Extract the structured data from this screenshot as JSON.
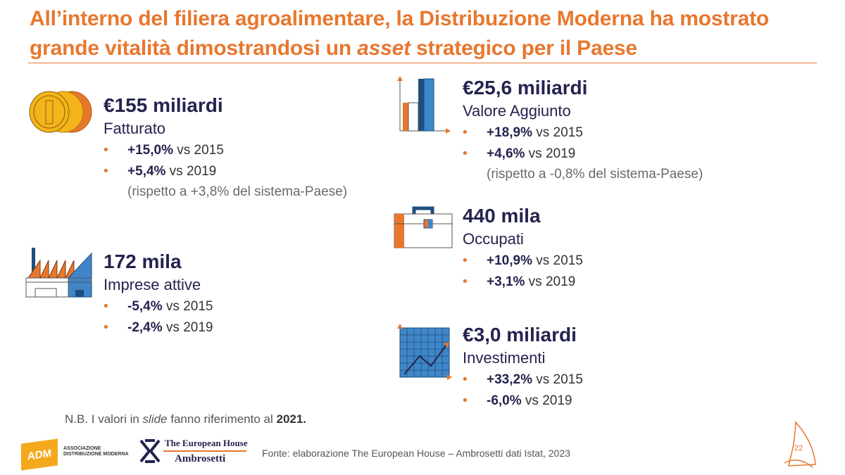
{
  "title": {
    "line1": "All’interno del filiera agroalimentare, la Distribuzione Moderna ha mostrato",
    "line2_a": "grande vitalità dimostrandosi un ",
    "line2_i": "asset",
    "line2_b": " strategico per il Paese"
  },
  "blocks": [
    {
      "headline": "€155 miliardi",
      "label": "Fatturato",
      "icon": "coins-icon",
      "bullets": [
        {
          "value": "+15,0%",
          "text": " vs 2015"
        },
        {
          "value": "+5,4%",
          "text": " vs 2019"
        }
      ],
      "note": "(rispetto a +3,8% del sistema-Paese)"
    },
    {
      "headline": "172 mila",
      "label": "Imprese attive",
      "icon": "factory-icon",
      "bullets": [
        {
          "value": "-5,4%",
          "text": " vs 2015"
        },
        {
          "value": "-2,4%",
          "text": " vs 2019"
        }
      ]
    },
    {
      "headline": "€25,6 miliardi",
      "label": "Valore Aggiunto",
      "icon": "bar-chart-icon",
      "bullets": [
        {
          "value": "+18,9%",
          "text": " vs 2015"
        },
        {
          "value": "+4,6%",
          "text": " vs 2019"
        }
      ],
      "note": "(rispetto a -0,8% del sistema-Paese)"
    },
    {
      "headline": "440 mila",
      "label": "Occupati",
      "icon": "briefcase-icon",
      "bullets": [
        {
          "value": "+10,9%",
          "text": " vs 2015"
        },
        {
          "value": "+3,1%",
          "text": " vs 2019"
        }
      ]
    },
    {
      "headline": "€3,0 miliardi",
      "label": "Investimenti",
      "icon": "line-chart-icon",
      "bullets": [
        {
          "value": "+33,2%",
          "text": " vs 2015"
        },
        {
          "value": "-6,0%",
          "text": " vs 2019"
        }
      ]
    }
  ],
  "footnote": {
    "a": "N.B. I valori in ",
    "i": "slide",
    "b": " fanno riferimento al ",
    "year": "2021."
  },
  "source": "Fonte: elaborazione The European House – Ambrosetti dati Istat, 2023",
  "logos": {
    "adm": "ADM",
    "adm_line1": "ASSOCIAZIONE",
    "adm_line2": "DISTRIBUZIONE MODERNA",
    "teh_line1": "The European House",
    "teh_line2": "Ambrosetti"
  },
  "page_number": "22",
  "colors": {
    "orange": "#e8772e",
    "navy": "#24234f",
    "blue": "#3f86c8",
    "gold": "#f4b41a"
  }
}
